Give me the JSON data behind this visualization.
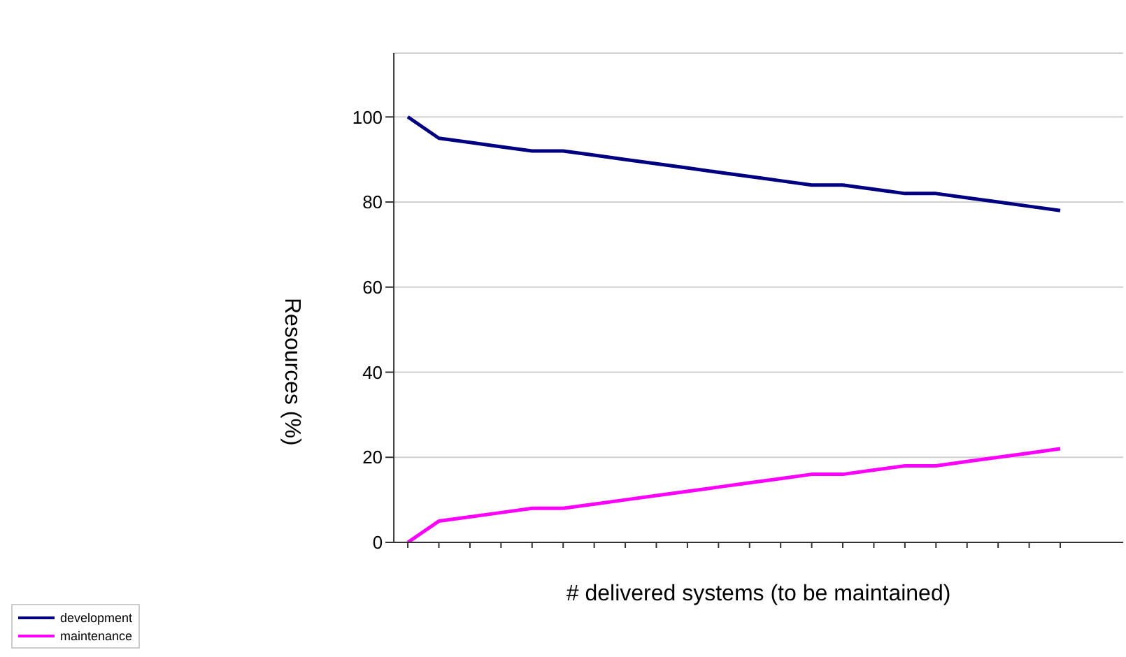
{
  "chart_data": {
    "type": "line",
    "xlabel": "# delivered systems (to be maintained)",
    "ylabel": "Resources (%)",
    "categories": [
      null,
      null,
      null,
      null,
      null,
      null,
      null,
      null,
      null,
      null,
      null,
      null,
      null,
      null,
      null,
      null,
      null,
      null,
      null,
      null,
      null,
      null
    ],
    "series": [
      {
        "name": "development",
        "color": "#000080",
        "values": [
          100,
          95,
          94,
          93,
          92,
          92,
          91,
          90,
          89,
          88,
          87,
          86,
          85,
          84,
          84,
          83,
          82,
          82,
          81,
          80,
          79,
          78
        ]
      },
      {
        "name": "maintenance",
        "color": "#ff00ff",
        "values": [
          0,
          5,
          6,
          7,
          8,
          8,
          9,
          10,
          11,
          12,
          13,
          14,
          15,
          16,
          16,
          17,
          18,
          18,
          19,
          20,
          21,
          22
        ]
      }
    ],
    "ylim": [
      0,
      115
    ],
    "yticks": [
      0,
      20,
      40,
      60,
      80,
      100
    ],
    "grid": "y",
    "legend": "bottom left",
    "marker": "none",
    "line_style": "solid",
    "tick_labels": "y"
  }
}
